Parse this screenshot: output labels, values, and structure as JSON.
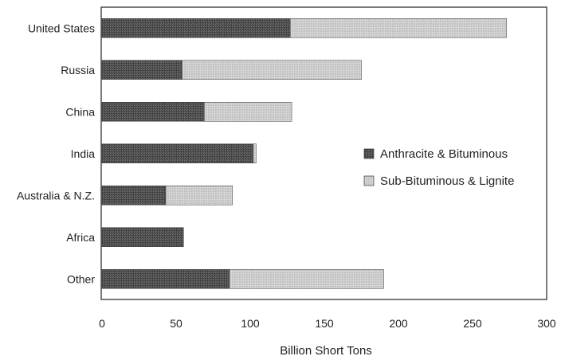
{
  "chart_data": {
    "type": "bar",
    "orientation": "horizontal",
    "stacked": true,
    "categories": [
      "United States",
      "Russia",
      "China",
      "India",
      "Australia & N.Z.",
      "Africa",
      "Other"
    ],
    "series": [
      {
        "name": "Anthracite & Bituminous",
        "values": [
          127,
          54,
          69,
          102,
          43,
          55,
          86
        ],
        "color": "#5a5a5a"
      },
      {
        "name": "Sub-Bituminous & Lignite",
        "values": [
          146,
          121,
          59,
          2,
          45,
          0,
          104
        ],
        "color": "#c8c8c8"
      }
    ],
    "title": "",
    "xlabel": "Billion Short Tons",
    "ylabel": "",
    "xlim": [
      0,
      300
    ],
    "xticks": [
      0,
      50,
      100,
      150,
      200,
      250,
      300
    ],
    "grid": false,
    "legend_position": "right"
  }
}
